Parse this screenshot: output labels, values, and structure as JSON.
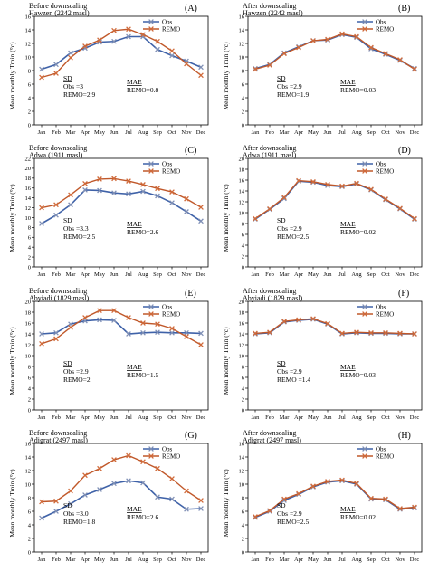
{
  "ylabel": "Mean monthly Tmin (°c)",
  "months": [
    "Jan",
    "Feb",
    "Mar",
    "Apr",
    "May",
    "Jun",
    "Jul",
    "Aug",
    "Sep",
    "Oct",
    "Nov",
    "Dec"
  ],
  "colors": {
    "obs": "#3f62a8",
    "remo": "#c0582a",
    "obs_marker": "#7f8fb5",
    "remo_marker": "#d06a3a"
  },
  "chart_data": [
    {
      "type": "line",
      "panel": "(A)",
      "title": "Before downscaling",
      "subtitle": "Hawzen (2242 masl)",
      "ylim": [
        0,
        16
      ],
      "yticks": [
        0,
        2,
        4,
        6,
        8,
        10,
        12,
        14,
        16
      ],
      "categories": [
        "Jan",
        "Feb",
        "Mar",
        "Apr",
        "May",
        "Jun",
        "Jul",
        "Aug",
        "Sep",
        "Oct",
        "Nov",
        "Dec"
      ],
      "series": [
        {
          "name": "Obs",
          "values": [
            8.2,
            8.9,
            10.6,
            11.3,
            12.2,
            12.3,
            13.0,
            13.0,
            11.1,
            10.2,
            9.4,
            8.5
          ]
        },
        {
          "name": "REMO",
          "values": [
            7.0,
            7.6,
            9.9,
            11.6,
            12.5,
            13.9,
            14.1,
            13.3,
            12.3,
            10.9,
            9.0,
            7.3
          ]
        }
      ],
      "legend": "top-right",
      "sd_label": "SD",
      "sd_obs": "Obs      =3",
      "sd_remo": "REMO=2.9",
      "mae_label": "MAE",
      "mae_remo": "REMO=0.8"
    },
    {
      "type": "line",
      "panel": "(B)",
      "title": "After downscaling",
      "subtitle": "Hawzen (2242 masl)",
      "ylim": [
        0,
        16
      ],
      "yticks": [
        0,
        2,
        4,
        6,
        8,
        10,
        12,
        14,
        16
      ],
      "categories": [
        "Jan",
        "Feb",
        "Mar",
        "Apr",
        "May",
        "Jun",
        "Jul",
        "Aug",
        "Sep",
        "Oct",
        "Nov",
        "Dec"
      ],
      "series": [
        {
          "name": "Obs",
          "values": [
            8.3,
            8.9,
            10.6,
            11.5,
            12.4,
            12.5,
            13.3,
            12.9,
            11.2,
            10.4,
            9.5,
            8.3
          ]
        },
        {
          "name": "REMO",
          "values": [
            8.2,
            8.8,
            10.5,
            11.4,
            12.4,
            12.6,
            13.4,
            13.0,
            11.4,
            10.5,
            9.6,
            8.2
          ]
        }
      ],
      "legend": "top-right",
      "sd_label": "SD",
      "sd_obs": "Obs      =2.9",
      "sd_remo": "REMO=1.9",
      "mae_label": "MAE",
      "mae_remo": "REMO=0.03"
    },
    {
      "type": "line",
      "panel": "(C)",
      "title": "Before downscaling",
      "subtitle": "Adwa (1911 masl)",
      "ylim": [
        0,
        22
      ],
      "yticks": [
        0,
        2,
        4,
        6,
        8,
        10,
        12,
        14,
        16,
        18,
        20,
        22
      ],
      "categories": [
        "Jan",
        "Feb",
        "Mar",
        "Apr",
        "May",
        "Jun",
        "Jul",
        "Aug",
        "Sep",
        "Oct",
        "Nov",
        "Dec"
      ],
      "series": [
        {
          "name": "Obs",
          "values": [
            8.8,
            10.5,
            12.6,
            15.6,
            15.5,
            15.0,
            14.8,
            15.3,
            14.4,
            13.0,
            11.2,
            9.3
          ]
        },
        {
          "name": "REMO",
          "values": [
            12.0,
            12.6,
            14.6,
            16.9,
            17.8,
            17.9,
            17.4,
            16.7,
            15.9,
            15.2,
            13.8,
            12.1
          ]
        }
      ],
      "legend": "top-right",
      "sd_label": "SD",
      "sd_obs": "Obs      =3.3",
      "sd_remo": "REMO=2.5",
      "mae_label": "MAE",
      "mae_remo": "REMO=2.6"
    },
    {
      "type": "line",
      "panel": "(D)",
      "title": "After downscaling",
      "subtitle": "Adwa (1911 masl)",
      "ylim": [
        0,
        20
      ],
      "yticks": [
        0,
        2,
        4,
        6,
        8,
        10,
        12,
        14,
        16,
        18,
        20
      ],
      "categories": [
        "Jan",
        "Feb",
        "Mar",
        "Apr",
        "May",
        "Jun",
        "Jul",
        "Aug",
        "Sep",
        "Oct",
        "Nov",
        "Dec"
      ],
      "series": [
        {
          "name": "Obs",
          "values": [
            8.8,
            10.6,
            12.6,
            15.8,
            15.6,
            15.0,
            14.8,
            15.3,
            14.2,
            12.4,
            10.7,
            8.8
          ]
        },
        {
          "name": "REMO",
          "values": [
            8.9,
            10.7,
            12.8,
            15.9,
            15.7,
            15.2,
            14.9,
            15.4,
            14.3,
            12.5,
            10.8,
            8.9
          ]
        }
      ],
      "legend": "top-right",
      "sd_label": "SD",
      "sd_obs": "Obs      =2.9",
      "sd_remo": "REMO=2.5",
      "mae_label": "MAE",
      "mae_remo": "REMO=0.02"
    },
    {
      "type": "line",
      "panel": "(E)",
      "title": "Before downscaling",
      "subtitle": "Abyiadi (1829 masl)",
      "ylim": [
        0,
        20
      ],
      "yticks": [
        0,
        2,
        4,
        6,
        8,
        10,
        12,
        14,
        16,
        18,
        20
      ],
      "categories": [
        "Jan",
        "Feb",
        "Mar",
        "Apr",
        "May",
        "Jun",
        "Jul",
        "Aug",
        "Sep",
        "Oct",
        "Nov",
        "Dec"
      ],
      "series": [
        {
          "name": "Obs",
          "values": [
            14.0,
            14.2,
            15.8,
            16.4,
            16.6,
            16.5,
            14.0,
            14.2,
            14.3,
            14.2,
            14.2,
            14.1
          ]
        },
        {
          "name": "REMO",
          "values": [
            12.2,
            13.1,
            15.2,
            17.0,
            18.3,
            18.3,
            17.0,
            16.0,
            15.8,
            15.0,
            13.5,
            12.0
          ]
        }
      ],
      "legend": "top-right",
      "sd_label": "SD",
      "sd_obs": "Obs      =2.9",
      "sd_remo": "REMO=2.",
      "mae_label": "MAE",
      "mae_remo": "REMO=1.5"
    },
    {
      "type": "line",
      "panel": "(F)",
      "title": "After downscaling",
      "subtitle": "Abyiadi (1829 masl)",
      "ylim": [
        0,
        20
      ],
      "yticks": [
        0,
        2,
        4,
        6,
        8,
        10,
        12,
        14,
        16,
        18,
        20
      ],
      "categories": [
        "Jan",
        "Feb",
        "Mar",
        "Apr",
        "May",
        "Jun",
        "Jul",
        "Aug",
        "Sep",
        "Oct",
        "Nov",
        "Dec"
      ],
      "series": [
        {
          "name": "Obs",
          "values": [
            14.0,
            14.2,
            16.2,
            16.5,
            16.7,
            15.8,
            14.0,
            14.2,
            14.1,
            14.1,
            14.0,
            14.0
          ]
        },
        {
          "name": "REMO",
          "values": [
            14.1,
            14.3,
            16.3,
            16.6,
            16.8,
            15.9,
            14.1,
            14.3,
            14.2,
            14.2,
            14.1,
            14.0
          ]
        }
      ],
      "legend": "top-right",
      "sd_label": "SD",
      "sd_obs": "Obs      =2.9",
      "sd_remo": "REMO =1.4",
      "mae_label": "MAE",
      "mae_remo": "REMO=0.03"
    },
    {
      "type": "line",
      "panel": "(G)",
      "title": "Before downscaling",
      "subtitle": "Adigrat (2497 masl)",
      "ylim": [
        0,
        16
      ],
      "yticks": [
        0,
        2,
        4,
        6,
        8,
        10,
        12,
        14,
        16
      ],
      "categories": [
        "Jan",
        "Feb",
        "Mar",
        "Apr",
        "May",
        "Jun",
        "Jul",
        "Aug",
        "Sep",
        "Oct",
        "Nov",
        "Dec"
      ],
      "series": [
        {
          "name": "Obs",
          "values": [
            5.0,
            6.0,
            7.1,
            8.4,
            9.2,
            10.1,
            10.5,
            10.2,
            8.1,
            7.8,
            6.3,
            6.4
          ]
        },
        {
          "name": "REMO",
          "values": [
            7.4,
            7.5,
            9.0,
            11.3,
            12.3,
            13.6,
            14.2,
            13.3,
            12.3,
            10.8,
            9.0,
            7.6
          ]
        }
      ],
      "legend": "top-right",
      "sd_label": "SD",
      "sd_obs": "Obs      =3.0",
      "sd_remo": "REMO=1.8",
      "mae_label": "MAE",
      "mae_remo": "REMO=2.6"
    },
    {
      "type": "line",
      "panel": "(H)",
      "title": "After downscaling",
      "subtitle": "Adigrat (2497 masl)",
      "ylim": [
        0,
        16
      ],
      "yticks": [
        0,
        2,
        4,
        6,
        8,
        10,
        12,
        14,
        16
      ],
      "categories": [
        "Jan",
        "Feb",
        "Mar",
        "Apr",
        "May",
        "Jun",
        "Jul",
        "Aug",
        "Sep",
        "Oct",
        "Nov",
        "Dec"
      ],
      "series": [
        {
          "name": "Obs",
          "values": [
            5.1,
            6.0,
            7.6,
            8.5,
            9.6,
            10.3,
            10.5,
            10.0,
            7.8,
            7.7,
            6.3,
            6.5
          ]
        },
        {
          "name": "REMO",
          "values": [
            5.2,
            6.1,
            7.8,
            8.6,
            9.7,
            10.4,
            10.6,
            10.1,
            7.9,
            7.8,
            6.4,
            6.6
          ]
        }
      ],
      "legend": "top-right",
      "sd_label": "SD",
      "sd_obs": "Obs      =2.9",
      "sd_remo": "REMO=2.5",
      "mae_label": "MAE",
      "mae_remo": "REMO=0.02"
    }
  ]
}
